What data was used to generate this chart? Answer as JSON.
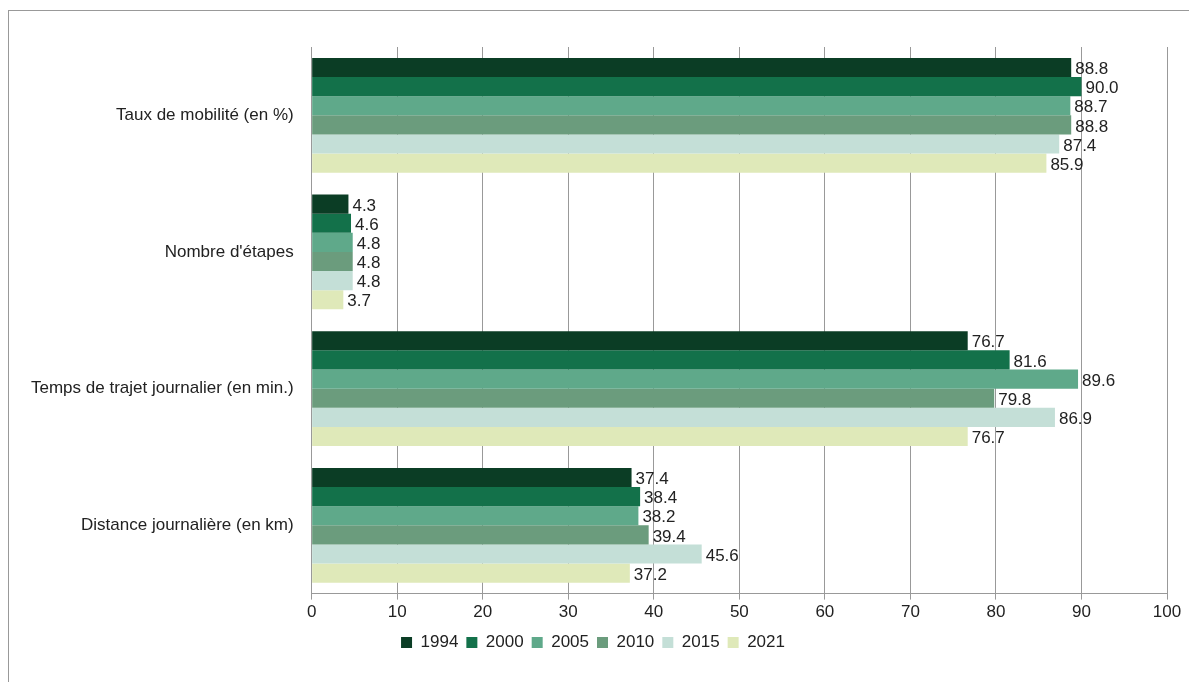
{
  "chart_data": {
    "type": "bar",
    "orientation": "horizontal",
    "categories": [
      "Taux de mobilité (en %)",
      "Nombre d'étapes",
      "Temps de trajet journalier (en min.)",
      "Distance journalière (en km)"
    ],
    "series": [
      {
        "name": "1994",
        "color": "#0b3d25",
        "values": [
          88.8,
          4.3,
          76.7,
          37.4
        ],
        "value_labels": [
          "88.8",
          "4.3",
          "76.7",
          "37.4"
        ]
      },
      {
        "name": "2000",
        "color": "#13714a",
        "values": [
          90.0,
          4.6,
          81.6,
          38.4
        ],
        "value_labels": [
          "90.0",
          "4.6",
          "81.6",
          "38.4"
        ]
      },
      {
        "name": "2005",
        "color": "#5fa98a",
        "values": [
          88.7,
          4.8,
          89.6,
          38.2
        ],
        "value_labels": [
          "88.7",
          "4.8",
          "89.6",
          "38.2"
        ]
      },
      {
        "name": "2010",
        "color": "#6b9c7d",
        "values": [
          88.8,
          4.8,
          79.8,
          39.4
        ],
        "value_labels": [
          "88.8",
          "4.8",
          "79.8",
          "39.4"
        ]
      },
      {
        "name": "2015",
        "color": "#c4dfd7",
        "values": [
          87.4,
          4.8,
          86.9,
          45.6
        ],
        "value_labels": [
          "87.4",
          "4.8",
          "86.9",
          "45.6"
        ]
      },
      {
        "name": "2021",
        "color": "#dfe9b9",
        "values": [
          85.9,
          3.7,
          76.7,
          37.2
        ],
        "value_labels": [
          "85.9",
          "3.7",
          "76.7",
          "37.2"
        ]
      }
    ],
    "xlim": [
      0,
      100
    ],
    "xticks": [
      0,
      10,
      20,
      30,
      40,
      50,
      60,
      70,
      80,
      90,
      100
    ],
    "grid": "x",
    "legend": "bottom"
  }
}
